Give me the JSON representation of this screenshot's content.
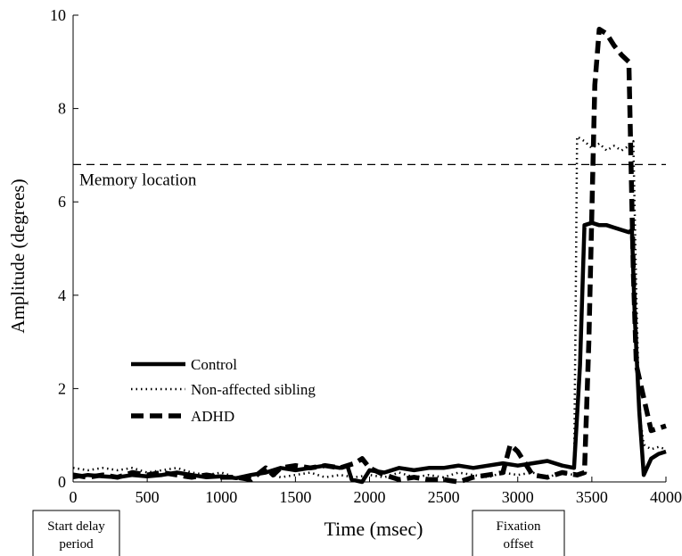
{
  "chart_data": {
    "type": "line",
    "xlabel": "Time (msec)",
    "ylabel": "Amplitude (degrees)",
    "xlim": [
      0,
      4000
    ],
    "ylim": [
      0,
      10
    ],
    "xticks": [
      0,
      500,
      1000,
      1500,
      2000,
      2500,
      3000,
      3500,
      4000
    ],
    "yticks": [
      0,
      2,
      4,
      6,
      8,
      10
    ],
    "grid": false,
    "legend_position": "lower-left",
    "reference_line": {
      "y": 6.8,
      "label": "Memory location"
    },
    "annotations": [
      {
        "x": 0,
        "label": "Start delay period"
      },
      {
        "x": 3000,
        "label": "Fixation offset"
      }
    ],
    "series": [
      {
        "name": "Control",
        "style": "solid",
        "x": [
          0,
          100,
          200,
          300,
          400,
          500,
          600,
          700,
          800,
          900,
          1000,
          1100,
          1200,
          1300,
          1400,
          1500,
          1600,
          1700,
          1800,
          1850,
          1880,
          1950,
          2000,
          2100,
          2200,
          2300,
          2400,
          2500,
          2600,
          2700,
          2800,
          2900,
          3000,
          3100,
          3200,
          3300,
          3380,
          3420,
          3450,
          3500,
          3550,
          3600,
          3650,
          3700,
          3750,
          3770,
          3790,
          3820,
          3850,
          3900,
          3950,
          4000
        ],
        "values": [
          0.1,
          0.15,
          0.12,
          0.1,
          0.15,
          0.12,
          0.15,
          0.2,
          0.15,
          0.1,
          0.12,
          0.08,
          0.15,
          0.2,
          0.3,
          0.25,
          0.3,
          0.35,
          0.3,
          0.35,
          0.05,
          0.0,
          0.25,
          0.2,
          0.3,
          0.25,
          0.3,
          0.3,
          0.35,
          0.3,
          0.35,
          0.4,
          0.35,
          0.4,
          0.45,
          0.35,
          0.3,
          2.5,
          5.5,
          5.55,
          5.5,
          5.5,
          5.45,
          5.4,
          5.35,
          5.4,
          3.5,
          1.5,
          0.15,
          0.5,
          0.6,
          0.65
        ]
      },
      {
        "name": "Non-affected sibling",
        "style": "dotted",
        "x": [
          0,
          100,
          200,
          300,
          400,
          500,
          600,
          700,
          800,
          900,
          1000,
          1100,
          1200,
          1300,
          1400,
          1500,
          1600,
          1700,
          1800,
          1900,
          2000,
          2100,
          2200,
          2300,
          2400,
          2500,
          2600,
          2700,
          2800,
          2900,
          3000,
          3100,
          3200,
          3300,
          3380,
          3390,
          3400,
          3450,
          3500,
          3550,
          3600,
          3650,
          3700,
          3750,
          3780,
          3800,
          3820,
          3850,
          3900,
          3950,
          4000
        ],
        "values": [
          0.3,
          0.25,
          0.3,
          0.25,
          0.3,
          0.2,
          0.25,
          0.3,
          0.2,
          0.15,
          0.2,
          0.1,
          0.15,
          0.2,
          0.1,
          0.15,
          0.2,
          0.1,
          0.15,
          0.1,
          0.15,
          0.1,
          0.2,
          0.1,
          0.15,
          0.1,
          0.2,
          0.15,
          0.1,
          0.2,
          0.15,
          0.2,
          0.1,
          0.2,
          0.15,
          3.5,
          7.4,
          7.3,
          7.15,
          7.25,
          7.1,
          7.2,
          7.1,
          7.2,
          7.3,
          4.0,
          1.5,
          0.8,
          0.7,
          0.75,
          0.7
        ]
      },
      {
        "name": "ADHD",
        "style": "dashed",
        "x": [
          0,
          100,
          200,
          300,
          400,
          500,
          600,
          700,
          800,
          900,
          1000,
          1100,
          1200,
          1300,
          1350,
          1400,
          1500,
          1600,
          1700,
          1800,
          1900,
          1950,
          2000,
          2100,
          2200,
          2300,
          2400,
          2500,
          2600,
          2700,
          2800,
          2900,
          2950,
          3000,
          3100,
          3200,
          3300,
          3400,
          3450,
          3480,
          3520,
          3550,
          3600,
          3650,
          3700,
          3750,
          3780,
          3800,
          3850,
          3900,
          4000
        ],
        "values": [
          0.15,
          0.1,
          0.15,
          0.1,
          0.2,
          0.15,
          0.2,
          0.15,
          0.1,
          0.15,
          0.1,
          0.1,
          0.05,
          0.3,
          0.15,
          0.3,
          0.35,
          0.3,
          0.35,
          0.3,
          0.4,
          0.5,
          0.3,
          0.15,
          0.05,
          0.1,
          0.05,
          0.05,
          0.0,
          0.1,
          0.15,
          0.2,
          0.8,
          0.65,
          0.15,
          0.1,
          0.2,
          0.15,
          0.2,
          3.0,
          8.5,
          9.7,
          9.6,
          9.35,
          9.15,
          9.0,
          4.5,
          2.5,
          1.8,
          1.1,
          1.2
        ]
      }
    ]
  }
}
